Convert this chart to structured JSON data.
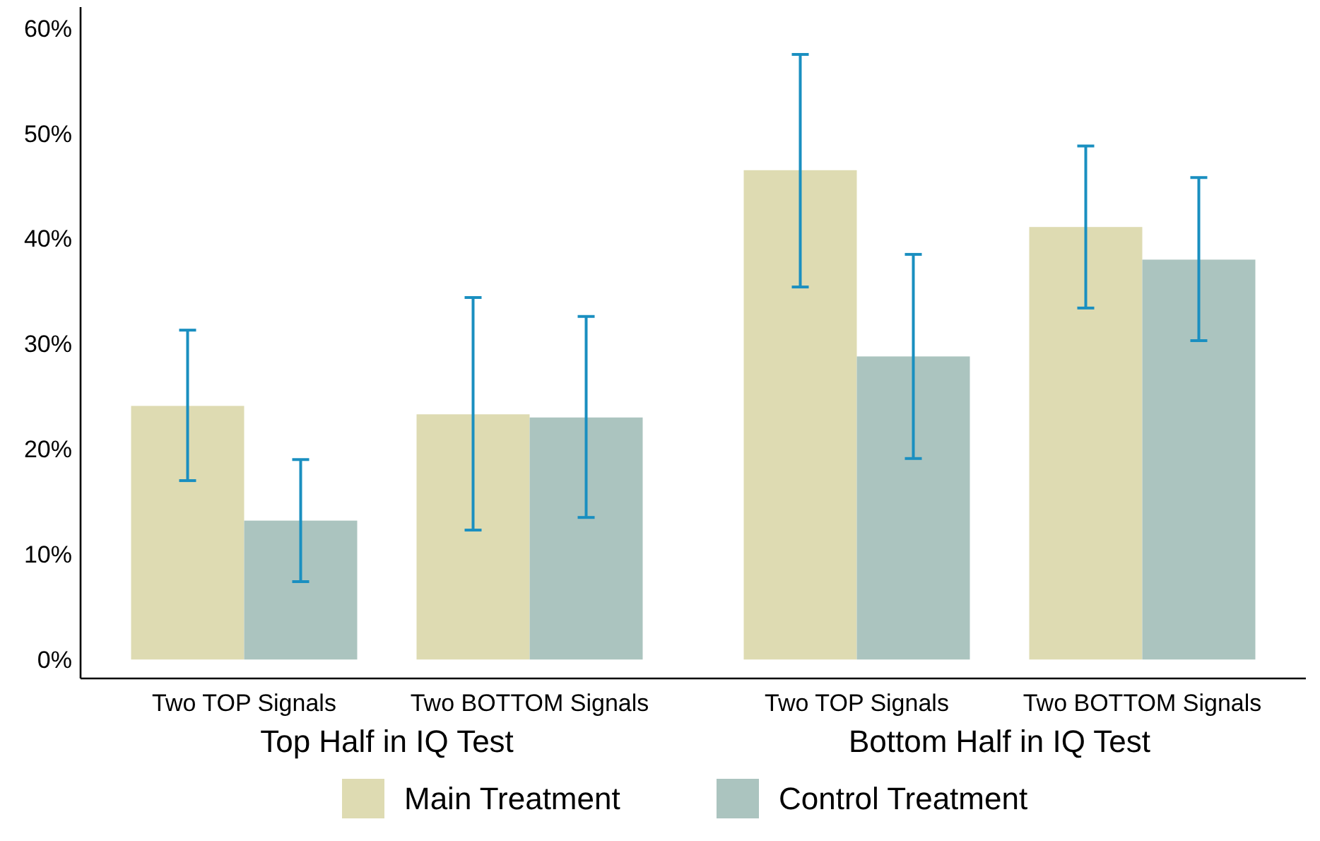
{
  "chart_data": {
    "type": "bar",
    "categories": [
      "Two TOP Signals",
      "Two BOTTOM Signals",
      "Two TOP Signals",
      "Two BOTTOM Signals"
    ],
    "series": [
      {
        "name": "Main Treatment",
        "color": "#dedbb2",
        "values": [
          24.1,
          23.3,
          46.5,
          41.1
        ],
        "errors": [
          [
            17.0,
            31.3
          ],
          [
            12.3,
            34.4
          ],
          [
            35.4,
            57.5
          ],
          [
            33.4,
            48.8
          ]
        ]
      },
      {
        "name": "Control Treatment",
        "color": "#abc4bf",
        "values": [
          13.2,
          23.0,
          28.8,
          38.0
        ],
        "errors": [
          [
            7.4,
            19.0
          ],
          [
            13.5,
            32.6
          ],
          [
            19.1,
            38.5
          ],
          [
            30.3,
            45.8
          ]
        ]
      }
    ],
    "ylim": [
      -1.8,
      62
    ],
    "yticks": [
      {
        "value": 0,
        "label": "0%"
      },
      {
        "value": 10,
        "label": "10%"
      },
      {
        "value": 20,
        "label": "20%"
      },
      {
        "value": 30,
        "label": "30%"
      },
      {
        "value": 40,
        "label": "40%"
      },
      {
        "value": 50,
        "label": "50%"
      },
      {
        "value": 60,
        "label": "60%"
      }
    ],
    "annotations": [
      "Top Half in IQ Test",
      "Bottom Half in IQ Test"
    ],
    "grid": false,
    "legend": "bottom"
  }
}
